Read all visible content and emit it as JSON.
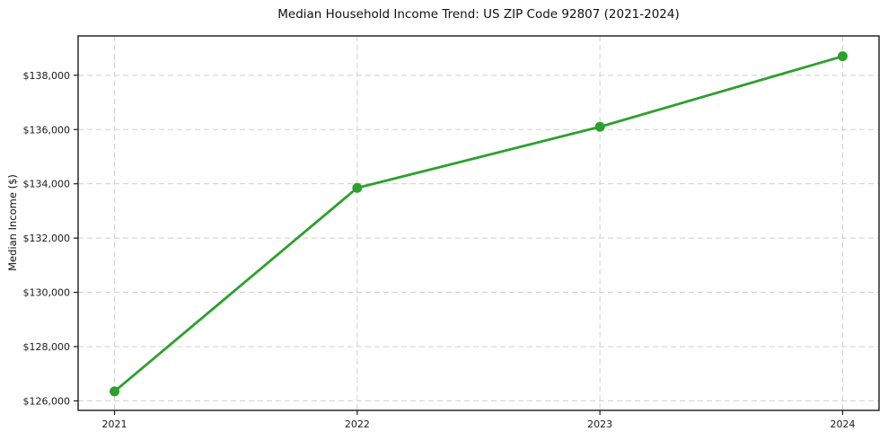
{
  "chart_data": {
    "type": "line",
    "title": "Median Household Income Trend: US ZIP Code 92807 (2021-2024)",
    "xlabel": "",
    "ylabel": "Median Income ($)",
    "x": [
      2021,
      2022,
      2023,
      2024
    ],
    "values": [
      126350,
      133850,
      136100,
      138700
    ],
    "xticks": {
      "values": [
        2021,
        2022,
        2023,
        2024
      ],
      "labels": [
        "2021",
        "2022",
        "2023",
        "2024"
      ]
    },
    "yticks": {
      "values": [
        126000,
        128000,
        130000,
        132000,
        134000,
        136000,
        138000
      ],
      "labels": [
        "$126,000",
        "$128,000",
        "$130,000",
        "$132,000",
        "$134,000",
        "$136,000",
        "$138,000"
      ]
    },
    "xlim": [
      2020.85,
      2024.15
    ],
    "ylim": [
      125650,
      139450
    ],
    "grid": true,
    "grid_style": "dashed",
    "legend_position": "none",
    "marker": "circle",
    "colors": {
      "line": "#2ca02c",
      "marker": "#2ca02c",
      "grid": "#cfcfcf",
      "spine": "#1a1a1a",
      "text": "#1a1a1a",
      "background": "#ffffff"
    }
  }
}
